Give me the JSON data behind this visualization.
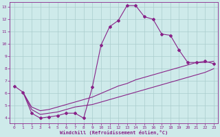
{
  "xlabel": "Windchill (Refroidissement éolien,°C)",
  "bg_color": "#ceeaea",
  "line_color": "#882288",
  "grid_color": "#aacccc",
  "xlim": [
    -0.5,
    23.5
  ],
  "ylim": [
    3.6,
    13.4
  ],
  "xticks": [
    0,
    1,
    2,
    3,
    4,
    5,
    6,
    7,
    8,
    9,
    10,
    11,
    12,
    13,
    14,
    15,
    16,
    17,
    18,
    19,
    20,
    21,
    22,
    23
  ],
  "yticks": [
    4,
    5,
    6,
    7,
    8,
    9,
    10,
    11,
    12,
    13
  ],
  "line1_x": [
    0,
    1,
    2,
    3,
    4,
    5,
    6,
    7,
    8,
    9,
    10,
    11,
    12,
    13,
    14,
    15,
    16,
    17,
    18,
    19,
    20,
    21,
    22,
    23
  ],
  "line1_y": [
    6.6,
    6.1,
    4.4,
    4.0,
    4.1,
    4.2,
    4.4,
    4.4,
    4.0,
    6.5,
    9.9,
    11.4,
    11.9,
    13.1,
    13.1,
    12.2,
    12.0,
    10.8,
    10.7,
    9.5,
    8.5,
    8.5,
    8.6,
    8.4
  ],
  "line2_x": [
    1,
    2,
    3,
    4,
    5,
    6,
    7,
    8,
    9,
    10,
    11,
    12,
    13,
    14,
    15,
    16,
    17,
    18,
    19,
    20,
    21,
    22,
    23
  ],
  "line2_y": [
    6.1,
    4.9,
    4.6,
    4.7,
    4.9,
    5.1,
    5.3,
    5.5,
    5.7,
    6.0,
    6.3,
    6.6,
    6.8,
    7.1,
    7.3,
    7.5,
    7.7,
    7.9,
    8.1,
    8.3,
    8.5,
    8.5,
    8.6
  ],
  "line3_x": [
    1,
    2,
    3,
    4,
    5,
    6,
    7,
    8,
    9,
    10,
    11,
    12,
    13,
    14,
    15,
    16,
    17,
    18,
    19,
    20,
    21,
    22,
    23
  ],
  "line3_y": [
    6.1,
    4.7,
    4.3,
    4.4,
    4.5,
    4.7,
    4.9,
    5.0,
    5.1,
    5.3,
    5.5,
    5.7,
    5.9,
    6.1,
    6.3,
    6.5,
    6.7,
    6.9,
    7.1,
    7.3,
    7.5,
    7.7,
    8.0
  ]
}
